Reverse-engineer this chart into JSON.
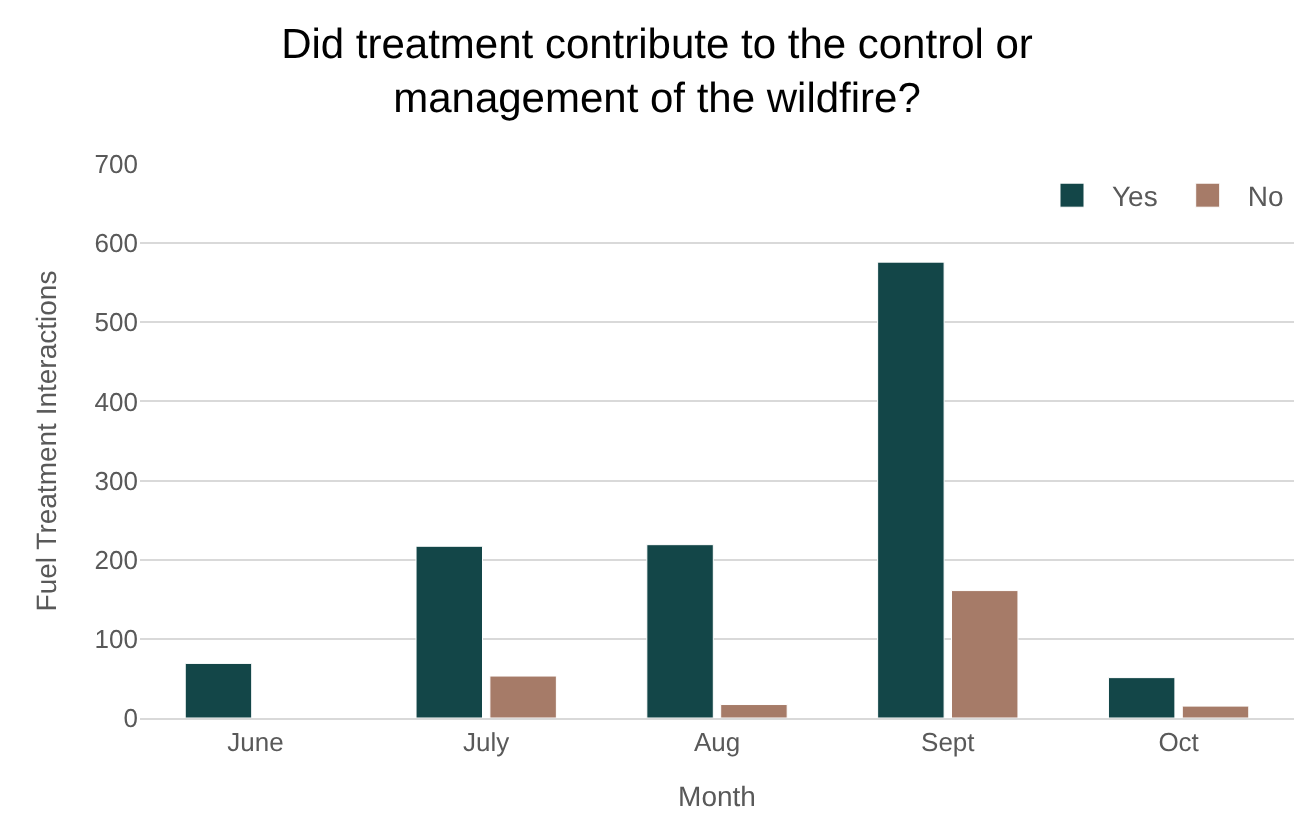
{
  "chart_data": {
    "type": "bar",
    "title": "Did treatment contribute to the control or management of the wildfire?",
    "xlabel": "Month",
    "ylabel": "Fuel Treatment Interactions",
    "categories": [
      "June",
      "July",
      "Aug",
      "Sept",
      "Oct"
    ],
    "series": [
      {
        "name": "Yes",
        "color": "#134648",
        "values": [
          69,
          217,
          219,
          576,
          51
        ]
      },
      {
        "name": "No",
        "color": "#a67b68",
        "values": [
          null,
          53,
          17,
          161,
          15
        ]
      }
    ],
    "ylim": [
      0,
      700
    ],
    "yticks": [
      0,
      100,
      200,
      300,
      400,
      500,
      600,
      700
    ],
    "grid": "y",
    "legend": "top right"
  }
}
